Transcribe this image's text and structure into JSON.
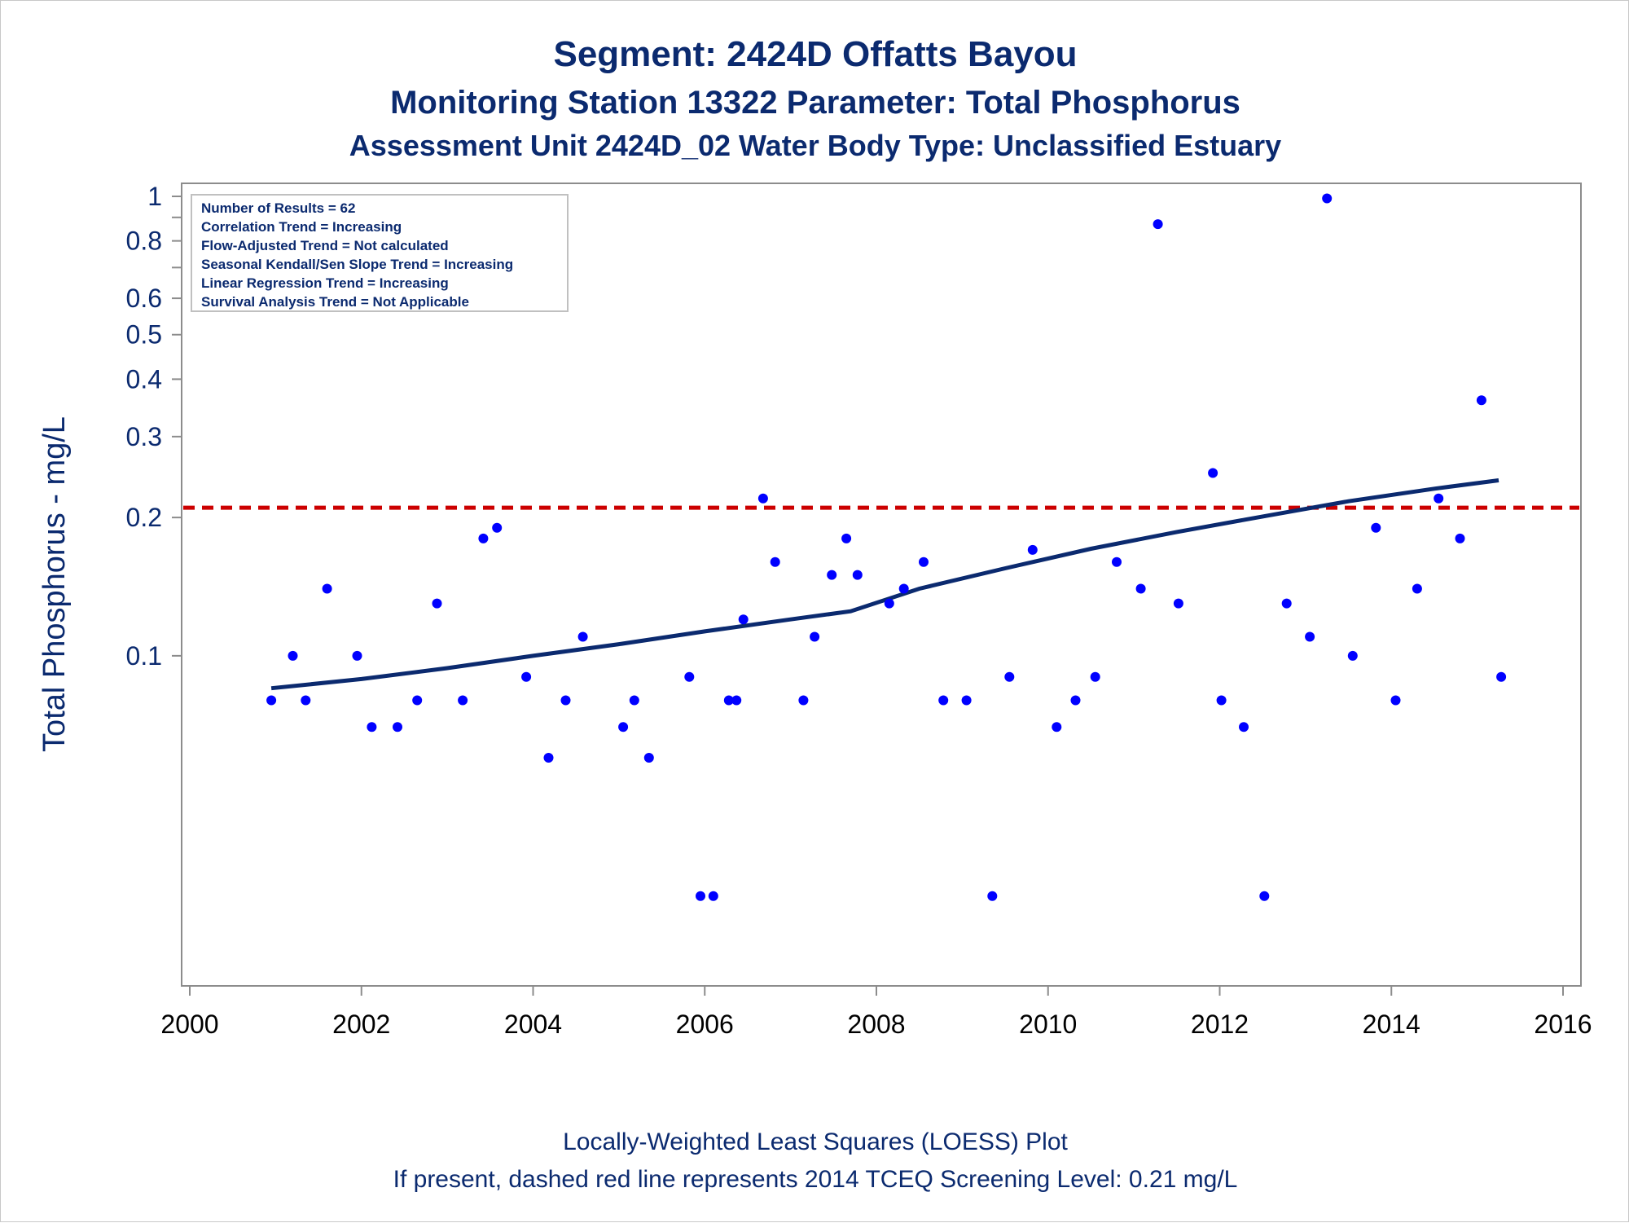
{
  "titles": {
    "line1": "Segment: 2424D  Offatts Bayou",
    "line2": "Monitoring Station 13322 Parameter: Total Phosphorus",
    "line3": "Assessment Unit 2424D_02   Water Body Type: Unclassified Estuary"
  },
  "footnotes": {
    "line1": "Locally-Weighted Least Squares (LOESS) Plot",
    "line2": "If present, dashed red line represents 2014 TCEQ Screening Level: 0.21 mg/L"
  },
  "stats_box": [
    "Number of Results = 62",
    "Correlation Trend = Increasing",
    "Flow-Adjusted Trend = Not calculated",
    "Seasonal Kendall/Sen Slope Trend = Increasing",
    "Linear Regression Trend = Increasing",
    "Survival Analysis Trend = Not Applicable"
  ],
  "colors": {
    "text": "#0b2a6f",
    "points": "#0000ff",
    "loess": "#0b2a6f",
    "screening": "#cc0000",
    "axis": "#8c8c8c"
  },
  "chart_data": {
    "type": "scatter",
    "ylabel": "Total Phosphorus - mg/L",
    "xlabel": "",
    "yscale": "log",
    "xlim": [
      2000,
      2016
    ],
    "ylim": [
      0.02,
      1
    ],
    "xticks": [
      2000,
      2002,
      2004,
      2006,
      2008,
      2010,
      2012,
      2014,
      2016
    ],
    "yticks": [
      {
        "value": 1,
        "label": "1"
      },
      {
        "value": 0.9,
        "label": ""
      },
      {
        "value": 0.8,
        "label": "0.8"
      },
      {
        "value": 0.7,
        "label": ""
      },
      {
        "value": 0.6,
        "label": "0.6"
      },
      {
        "value": 0.5,
        "label": "0.5"
      },
      {
        "value": 0.4,
        "label": "0.4"
      },
      {
        "value": 0.3,
        "label": "0.3"
      },
      {
        "value": 0.2,
        "label": "0.2"
      },
      {
        "value": 0.1,
        "label": "0.1"
      }
    ],
    "screening_level": 0.21,
    "points": [
      [
        2000.95,
        0.08
      ],
      [
        2001.2,
        0.1
      ],
      [
        2001.35,
        0.08
      ],
      [
        2001.6,
        0.14
      ],
      [
        2001.95,
        0.1
      ],
      [
        2002.12,
        0.07
      ],
      [
        2002.42,
        0.07
      ],
      [
        2002.65,
        0.08
      ],
      [
        2002.88,
        0.13
      ],
      [
        2003.18,
        0.08
      ],
      [
        2003.42,
        0.18
      ],
      [
        2003.58,
        0.19
      ],
      [
        2003.92,
        0.09
      ],
      [
        2004.18,
        0.06
      ],
      [
        2004.38,
        0.08
      ],
      [
        2004.58,
        0.11
      ],
      [
        2005.05,
        0.07
      ],
      [
        2005.18,
        0.08
      ],
      [
        2005.35,
        0.06
      ],
      [
        2005.82,
        0.09
      ],
      [
        2005.95,
        0.03
      ],
      [
        2006.1,
        0.03
      ],
      [
        2006.28,
        0.08
      ],
      [
        2006.37,
        0.08
      ],
      [
        2006.45,
        0.12
      ],
      [
        2006.68,
        0.22
      ],
      [
        2006.82,
        0.16
      ],
      [
        2007.15,
        0.08
      ],
      [
        2007.28,
        0.11
      ],
      [
        2007.48,
        0.15
      ],
      [
        2007.65,
        0.18
      ],
      [
        2007.78,
        0.15
      ],
      [
        2008.15,
        0.13
      ],
      [
        2008.32,
        0.14
      ],
      [
        2008.55,
        0.16
      ],
      [
        2008.78,
        0.08
      ],
      [
        2009.05,
        0.08
      ],
      [
        2009.35,
        0.03
      ],
      [
        2009.55,
        0.09
      ],
      [
        2009.82,
        0.17
      ],
      [
        2010.1,
        0.07
      ],
      [
        2010.32,
        0.08
      ],
      [
        2010.55,
        0.09
      ],
      [
        2010.8,
        0.16
      ],
      [
        2011.08,
        0.14
      ],
      [
        2011.28,
        0.87
      ],
      [
        2011.52,
        0.13
      ],
      [
        2011.92,
        0.25
      ],
      [
        2012.02,
        0.08
      ],
      [
        2012.28,
        0.07
      ],
      [
        2012.52,
        0.03
      ],
      [
        2012.78,
        0.13
      ],
      [
        2013.05,
        0.11
      ],
      [
        2013.25,
        0.99
      ],
      [
        2013.55,
        0.1
      ],
      [
        2013.82,
        0.19
      ],
      [
        2014.05,
        0.08
      ],
      [
        2014.3,
        0.14
      ],
      [
        2014.55,
        0.22
      ],
      [
        2014.8,
        0.18
      ],
      [
        2015.05,
        0.36
      ],
      [
        2015.28,
        0.09
      ]
    ],
    "loess": [
      [
        2000.95,
        0.085
      ],
      [
        2002.0,
        0.089
      ],
      [
        2003.0,
        0.094
      ],
      [
        2004.0,
        0.1
      ],
      [
        2005.0,
        0.106
      ],
      [
        2006.0,
        0.113
      ],
      [
        2007.0,
        0.12
      ],
      [
        2007.7,
        0.125
      ],
      [
        2008.5,
        0.14
      ],
      [
        2009.5,
        0.155
      ],
      [
        2010.5,
        0.171
      ],
      [
        2011.5,
        0.186
      ],
      [
        2012.5,
        0.201
      ],
      [
        2013.5,
        0.217
      ],
      [
        2014.5,
        0.231
      ],
      [
        2015.25,
        0.241
      ]
    ]
  }
}
